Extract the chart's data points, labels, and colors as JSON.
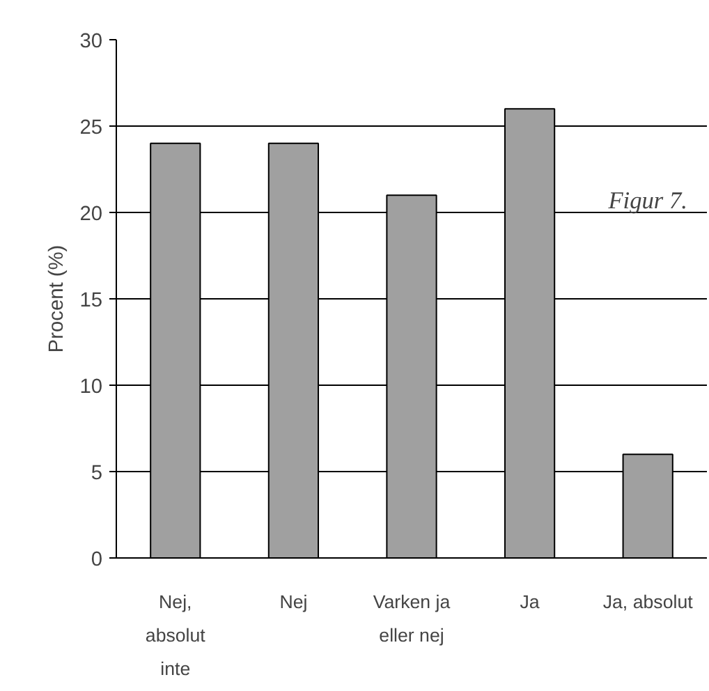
{
  "chart_data": {
    "type": "bar",
    "categories": [
      "Nej,\nabsolut\ninte",
      "Nej",
      "Varken ja\neller nej",
      "Ja",
      "Ja, absolut"
    ],
    "values": [
      24,
      24,
      21,
      26,
      6
    ],
    "color": "#a0a0a0",
    "ylabel": "Procent (%)",
    "ylim": [
      0,
      30
    ],
    "yticks": [
      0,
      5,
      10,
      15,
      20,
      25,
      30
    ],
    "grid": "y",
    "annotations": [
      "Figur 7."
    ]
  }
}
